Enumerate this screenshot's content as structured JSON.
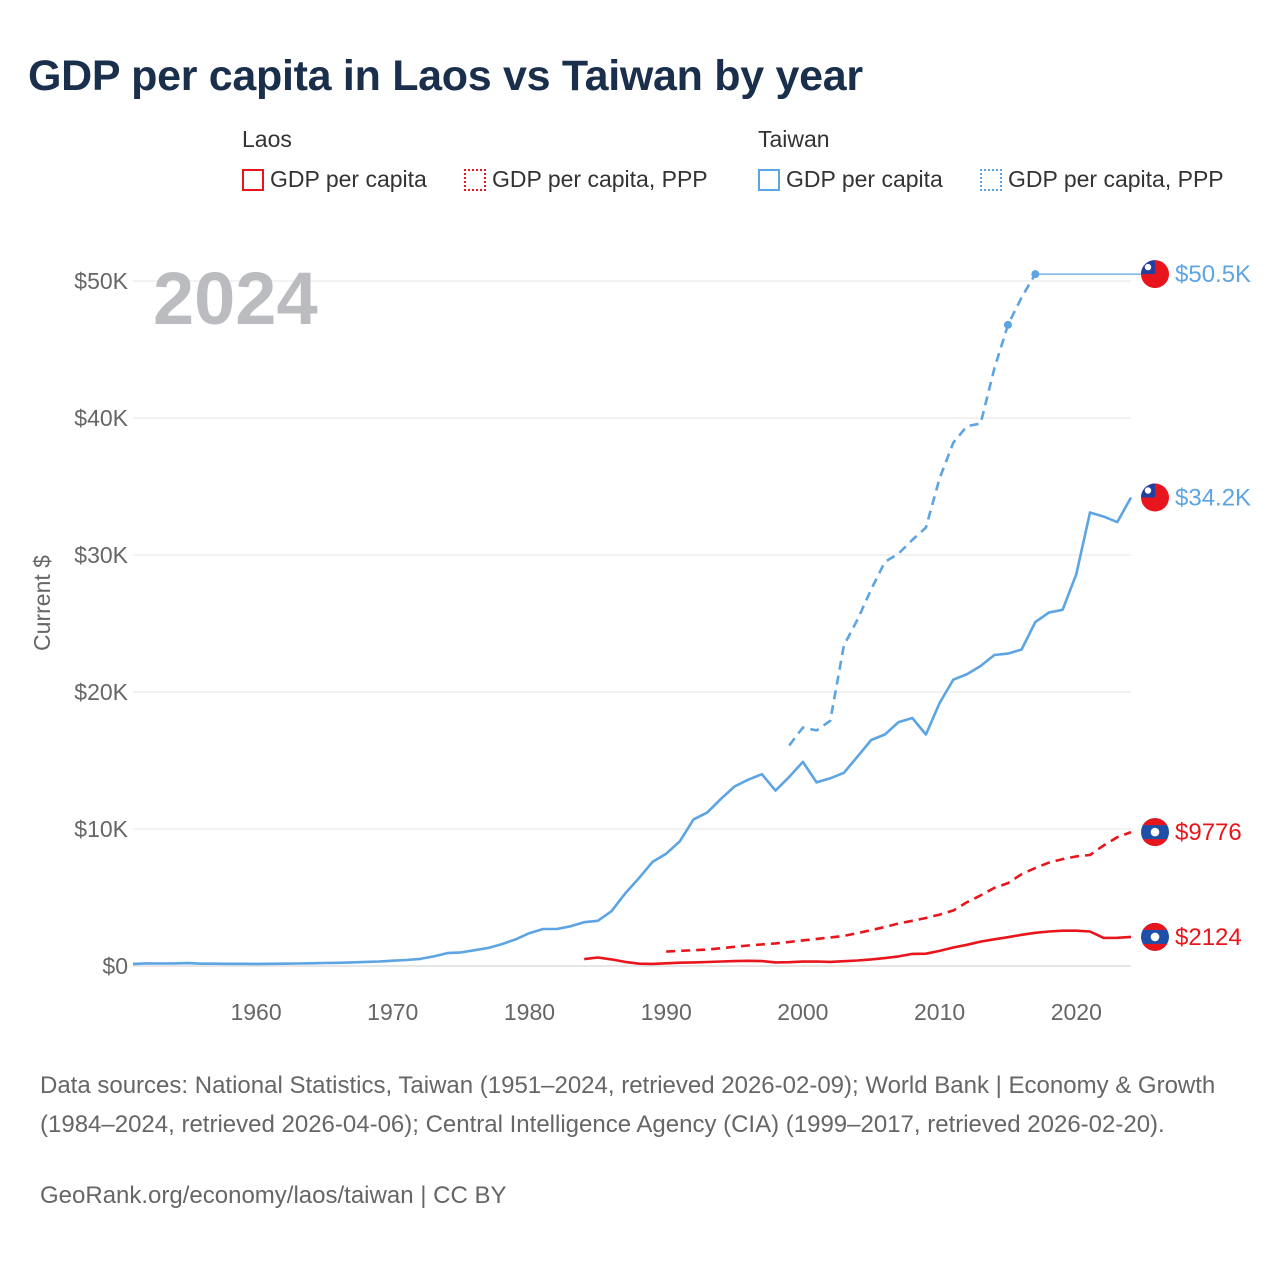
{
  "title": "GDP per capita in Laos vs Taiwan by year",
  "legend": {
    "laos": {
      "label": "Laos",
      "gdp": "GDP per capita",
      "ppp": "GDP per capita, PPP"
    },
    "taiwan": {
      "label": "Taiwan",
      "gdp": "GDP per capita",
      "ppp": "GDP per capita, PPP"
    }
  },
  "colors": {
    "laos": "#e8161c",
    "taiwan": "#5da4e3"
  },
  "flags": {
    "taiwan": "taiwan-flag-icon",
    "laos": "laos-flag-icon"
  },
  "source": {
    "text": "Data sources: National Statistics, Taiwan (1951–2024, retrieved 2026-02-09); World Bank | Economy & Growth (1984–2024, retrieved 2026-04-06); Central Intelligence Agency (CIA) (1999–2017, retrieved 2026-02-20).",
    "url": "GeoRank.org/economy/laos/taiwan",
    "license": "CC BY"
  },
  "chart_data": {
    "type": "line",
    "title": "GDP per capita in Laos vs Taiwan by year",
    "year_label": "2024",
    "ylabel": "Current $",
    "xlabel": "",
    "xlim": [
      1951,
      2024
    ],
    "ylim": [
      0,
      52000
    ],
    "x_ticks": [
      1960,
      1970,
      1980,
      1990,
      2000,
      2010,
      2020
    ],
    "y_ticks": [
      {
        "value": 0,
        "label": "$0"
      },
      {
        "value": 10000,
        "label": "$10K"
      },
      {
        "value": 20000,
        "label": "$20K"
      },
      {
        "value": 30000,
        "label": "$30K"
      },
      {
        "value": 40000,
        "label": "$40K"
      },
      {
        "value": 50000,
        "label": "$50K"
      }
    ],
    "end_labels": [
      {
        "series": "taiwan_ppp",
        "label": "$50.5K",
        "value": 50500
      },
      {
        "series": "taiwan_gdp",
        "label": "$34.2K",
        "value": 34200
      },
      {
        "series": "laos_ppp",
        "label": "$9776",
        "value": 9776
      },
      {
        "series": "laos_gdp",
        "label": "$2124",
        "value": 2124
      }
    ],
    "series": [
      {
        "id": "taiwan_gdp",
        "name": "Taiwan GDP per capita",
        "country": "taiwan",
        "style": "solid",
        "x": [
          1951,
          1952,
          1953,
          1954,
          1955,
          1956,
          1957,
          1958,
          1959,
          1960,
          1961,
          1962,
          1963,
          1964,
          1965,
          1966,
          1967,
          1968,
          1969,
          1970,
          1971,
          1972,
          1973,
          1974,
          1975,
          1976,
          1977,
          1978,
          1979,
          1980,
          1981,
          1982,
          1983,
          1984,
          1985,
          1986,
          1987,
          1988,
          1989,
          1990,
          1991,
          1992,
          1993,
          1994,
          1995,
          1996,
          1997,
          1998,
          1999,
          2000,
          2001,
          2002,
          2003,
          2004,
          2005,
          2006,
          2007,
          2008,
          2009,
          2010,
          2011,
          2012,
          2013,
          2014,
          2015,
          2016,
          2017,
          2018,
          2019,
          2020,
          2021,
          2022,
          2023,
          2024
        ],
        "values": [
          150,
          190,
          180,
          190,
          210,
          170,
          170,
          160,
          160,
          150,
          160,
          170,
          180,
          200,
          220,
          230,
          260,
          300,
          330,
          390,
          440,
          520,
          700,
          940,
          990,
          1150,
          1320,
          1600,
          1950,
          2400,
          2700,
          2700,
          2900,
          3200,
          3300,
          4000,
          5300,
          6400,
          7600,
          8200,
          9100,
          10700,
          11200,
          12200,
          13100,
          13600,
          14000,
          12800,
          13800,
          14900,
          13400,
          13700,
          14100,
          15300,
          16500,
          16900,
          17800,
          18100,
          16900,
          19200,
          20900,
          21300,
          21900,
          22700,
          22800,
          23100,
          25100,
          25800,
          26000,
          28600,
          33100,
          32800,
          32400,
          34200
        ]
      },
      {
        "id": "taiwan_ppp",
        "name": "Taiwan GDP per capita, PPP",
        "country": "taiwan",
        "style": "dashed",
        "x": [
          1999,
          2000,
          2001,
          2002,
          2003,
          2004,
          2005,
          2006,
          2007,
          2008,
          2009,
          2010,
          2011,
          2012,
          2013,
          2014,
          2015,
          2016,
          2017
        ],
        "values": [
          16100,
          17400,
          17200,
          17900,
          23400,
          25300,
          27500,
          29500,
          30100,
          31100,
          32000,
          35600,
          38200,
          39400,
          39600,
          43600,
          46800,
          48800,
          50500
        ]
      },
      {
        "id": "laos_gdp",
        "name": "Laos GDP per capita",
        "country": "laos",
        "style": "solid",
        "x": [
          1984,
          1985,
          1986,
          1987,
          1988,
          1989,
          1990,
          1991,
          1992,
          1993,
          1994,
          1995,
          1996,
          1997,
          1998,
          1999,
          2000,
          2001,
          2002,
          2003,
          2004,
          2005,
          2006,
          2007,
          2008,
          2009,
          2010,
          2011,
          2012,
          2013,
          2014,
          2015,
          2016,
          2017,
          2018,
          2019,
          2020,
          2021,
          2022,
          2023,
          2024
        ],
        "values": [
          500,
          620,
          480,
          300,
          170,
          150,
          200,
          240,
          260,
          290,
          330,
          360,
          380,
          360,
          260,
          280,
          320,
          330,
          300,
          350,
          400,
          480,
          580,
          700,
          880,
          900,
          1100,
          1350,
          1550,
          1780,
          1950,
          2100,
          2280,
          2420,
          2520,
          2580,
          2580,
          2520,
          2050,
          2060,
          2124
        ]
      },
      {
        "id": "laos_ppp",
        "name": "Laos GDP per capita, PPP",
        "country": "laos",
        "style": "dashed",
        "x": [
          1990,
          1991,
          1992,
          1993,
          1994,
          1995,
          1996,
          1997,
          1998,
          1999,
          2000,
          2001,
          2002,
          2003,
          2004,
          2005,
          2006,
          2007,
          2008,
          2009,
          2010,
          2011,
          2012,
          2013,
          2014,
          2015,
          2016,
          2017,
          2018,
          2019,
          2020,
          2021,
          2022,
          2023,
          2024
        ],
        "values": [
          1050,
          1100,
          1150,
          1200,
          1300,
          1400,
          1500,
          1580,
          1650,
          1750,
          1870,
          1980,
          2080,
          2200,
          2400,
          2620,
          2850,
          3100,
          3300,
          3500,
          3750,
          4050,
          4650,
          5150,
          5700,
          6050,
          6700,
          7150,
          7550,
          7800,
          8000,
          8100,
          8800,
          9400,
          9776
        ]
      }
    ]
  }
}
